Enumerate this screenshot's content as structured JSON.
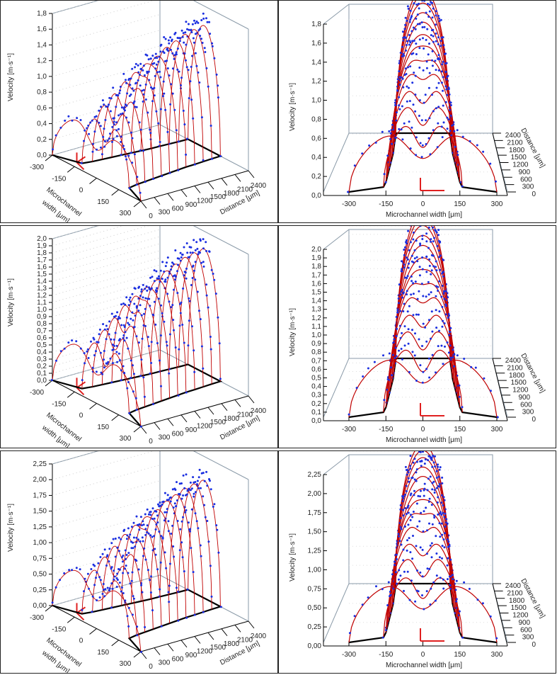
{
  "chart_data": [
    {
      "type": "scatter",
      "view": "oblique",
      "ylabel": "Velocity [m·s⁻¹]",
      "xlabel": [
        "Microchannel",
        "width [μm]"
      ],
      "zlabel": "Distance [μm]",
      "vmax": 1.8,
      "v_ticks": [
        "0,0",
        "0,2",
        "0,4",
        "0,6",
        "0,8",
        "1,0",
        "1,2",
        "1,4",
        "1,6",
        "1,8"
      ],
      "width_ticks": [
        "-300",
        "-150",
        "0",
        "150",
        "300"
      ],
      "distance_ticks": [
        "0",
        "300",
        "600",
        "900",
        "1200",
        "1500",
        "1800",
        "2100",
        "2400"
      ],
      "profiles": {
        "distance": [
          0,
          200,
          400,
          600,
          800,
          1000,
          1200,
          1400,
          1600,
          1800,
          2000,
          2200,
          2400
        ],
        "peak_velocity": [
          0.6,
          0.65,
          0.8,
          0.92,
          1.05,
          1.15,
          1.25,
          1.32,
          1.4,
          1.45,
          1.5,
          1.53,
          1.55
        ],
        "half_width": [
          300,
          160,
          150,
          145,
          140,
          135,
          130,
          125,
          120,
          118,
          115,
          112,
          110
        ],
        "center_dip": [
          0.5,
          0.45,
          0.35,
          0.25,
          0.15,
          0.08,
          0.03,
          0,
          0,
          0,
          0,
          0,
          0
        ]
      },
      "colors": {
        "fit": "#c00000",
        "measured": "#1a2ee0",
        "wall": "#000000"
      }
    },
    {
      "type": "scatter",
      "view": "front",
      "ylabel": "Velocity [m·s⁻¹]",
      "xlabel": "Microchannel width [μm]",
      "zlabel": "Distance [μm]",
      "vmax": 1.8,
      "v_ticks": [
        "0,0",
        "0,2",
        "0,4",
        "0,6",
        "0,8",
        "1,0",
        "1,2",
        "1,4",
        "1,6",
        "1,8"
      ],
      "width_ticks": [
        "-300",
        "-150",
        "0",
        "150",
        "300"
      ],
      "distance_ticks": [
        "0",
        "300",
        "600",
        "900",
        "1200",
        "1500",
        "1800",
        "2100",
        "2400"
      ],
      "profiles": {
        "distance": [
          0,
          200,
          400,
          600,
          800,
          1000,
          1200,
          1400,
          1600,
          1800,
          2000,
          2200,
          2400
        ],
        "peak_velocity": [
          0.6,
          0.65,
          0.8,
          0.92,
          1.05,
          1.15,
          1.25,
          1.32,
          1.4,
          1.45,
          1.5,
          1.53,
          1.55
        ],
        "half_width": [
          300,
          160,
          150,
          145,
          140,
          135,
          130,
          125,
          120,
          118,
          115,
          112,
          110
        ],
        "center_dip": [
          0.5,
          0.45,
          0.35,
          0.25,
          0.15,
          0.08,
          0.03,
          0,
          0,
          0,
          0,
          0,
          0
        ]
      },
      "colors": {
        "fit": "#c00000",
        "measured": "#1a2ee0",
        "wall": "#000000"
      }
    },
    {
      "type": "scatter",
      "view": "oblique",
      "ylabel": "Velocity [m·s⁻¹]",
      "xlabel": [
        "Microchannel",
        "width [μm]"
      ],
      "zlabel": "Distance [μm]",
      "vmax": 2.0,
      "v_ticks": [
        "0,0",
        "0,1",
        "0,2",
        "0,3",
        "0,4",
        "0,5",
        "0,6",
        "0,7",
        "0,8",
        "0,9",
        "1,0",
        "1,1",
        "1,2",
        "1,3",
        "1,4",
        "1,5",
        "1,6",
        "1,7",
        "1,8",
        "1,9",
        "2,0"
      ],
      "width_ticks": [
        "-300",
        "-150",
        "0",
        "150",
        "300"
      ],
      "distance_ticks": [
        "0",
        "300",
        "600",
        "900",
        "1200",
        "1500",
        "1800",
        "2100",
        "2400"
      ],
      "profiles": {
        "distance": [
          0,
          200,
          400,
          600,
          800,
          1000,
          1200,
          1400,
          1600,
          1800,
          2000,
          2200,
          2400
        ],
        "peak_velocity": [
          0.68,
          0.74,
          0.9,
          1.04,
          1.19,
          1.3,
          1.41,
          1.49,
          1.58,
          1.64,
          1.7,
          1.73,
          1.75
        ],
        "half_width": [
          300,
          160,
          150,
          145,
          140,
          135,
          130,
          125,
          120,
          118,
          115,
          112,
          110
        ],
        "center_dip": [
          0.5,
          0.45,
          0.35,
          0.25,
          0.15,
          0.08,
          0.03,
          0,
          0,
          0,
          0,
          0,
          0
        ]
      },
      "colors": {
        "fit": "#c00000",
        "measured": "#1a2ee0",
        "wall": "#000000"
      }
    },
    {
      "type": "scatter",
      "view": "front",
      "ylabel": "Velocity [m·s⁻¹]",
      "xlabel": "Microchannel width [μm]",
      "zlabel": "Distance [μm]",
      "vmax": 2.0,
      "v_ticks": [
        "0,0",
        "0,1",
        "0,2",
        "0,3",
        "0,4",
        "0,5",
        "0,6",
        "0,7",
        "0,8",
        "0,9",
        "1,0",
        "1,1",
        "1,2",
        "1,3",
        "1,4",
        "1,5",
        "1,6",
        "1,7",
        "1,8",
        "1,9",
        "2,0"
      ],
      "width_ticks": [
        "-300",
        "-150",
        "0",
        "150",
        "300"
      ],
      "distance_ticks": [
        "0",
        "300",
        "600",
        "900",
        "1200",
        "1500",
        "1800",
        "2100",
        "2400"
      ],
      "profiles": {
        "distance": [
          0,
          200,
          400,
          600,
          800,
          1000,
          1200,
          1400,
          1600,
          1800,
          2000,
          2200,
          2400
        ],
        "peak_velocity": [
          0.68,
          0.74,
          0.9,
          1.04,
          1.19,
          1.3,
          1.41,
          1.49,
          1.58,
          1.64,
          1.7,
          1.73,
          1.75
        ],
        "half_width": [
          300,
          160,
          150,
          145,
          140,
          135,
          130,
          125,
          120,
          118,
          115,
          112,
          110
        ],
        "center_dip": [
          0.5,
          0.45,
          0.35,
          0.25,
          0.15,
          0.08,
          0.03,
          0,
          0,
          0,
          0,
          0,
          0
        ]
      },
      "colors": {
        "fit": "#c00000",
        "measured": "#1a2ee0",
        "wall": "#000000"
      }
    },
    {
      "type": "scatter",
      "view": "oblique",
      "ylabel": "Velocity [m·s⁻¹]",
      "xlabel": [
        "Microchannel",
        "width [μm]"
      ],
      "zlabel": "Distance [μm]",
      "vmax": 2.25,
      "v_ticks": [
        "0,00",
        "0,25",
        "0,50",
        "0,75",
        "1,00",
        "1,25",
        "1,50",
        "1,75",
        "2,00",
        "2,25"
      ],
      "width_ticks": [
        "-300",
        "-150",
        "0",
        "150",
        "300"
      ],
      "distance_ticks": [
        "0",
        "300",
        "600",
        "900",
        "1200",
        "1500",
        "1800",
        "2100",
        "2400"
      ],
      "profiles": {
        "distance": [
          0,
          200,
          400,
          600,
          800,
          1000,
          1200,
          1400,
          1600,
          1800,
          2000,
          2200,
          2400
        ],
        "peak_velocity": [
          0.75,
          0.8,
          0.98,
          1.12,
          1.28,
          1.4,
          1.52,
          1.6,
          1.7,
          1.76,
          1.82,
          1.85,
          1.87
        ],
        "half_width": [
          300,
          160,
          150,
          145,
          140,
          135,
          130,
          125,
          120,
          118,
          115,
          112,
          110
        ],
        "center_dip": [
          0.5,
          0.45,
          0.35,
          0.25,
          0.15,
          0.08,
          0.03,
          0,
          0,
          0,
          0,
          0,
          0
        ]
      },
      "colors": {
        "fit": "#c00000",
        "measured": "#1a2ee0",
        "wall": "#000000"
      }
    },
    {
      "type": "scatter",
      "view": "front",
      "ylabel": "Velocity [m·s⁻¹]",
      "xlabel": "Microchannel width [μm]",
      "zlabel": "Distance [μm]",
      "vmax": 2.25,
      "v_ticks": [
        "0,00",
        "0,25",
        "0,50",
        "0,75",
        "1,00",
        "1,25",
        "1,50",
        "1,75",
        "2,00",
        "2,25"
      ],
      "width_ticks": [
        "-300",
        "-150",
        "0",
        "150",
        "300"
      ],
      "distance_ticks": [
        "0",
        "300",
        "600",
        "900",
        "1200",
        "1500",
        "1800",
        "2100",
        "2400"
      ],
      "profiles": {
        "distance": [
          0,
          200,
          400,
          600,
          800,
          1000,
          1200,
          1400,
          1600,
          1800,
          2000,
          2200,
          2400
        ],
        "peak_velocity": [
          0.75,
          0.8,
          0.98,
          1.12,
          1.28,
          1.4,
          1.52,
          1.6,
          1.7,
          1.76,
          1.82,
          1.85,
          1.87
        ],
        "half_width": [
          300,
          160,
          150,
          145,
          140,
          135,
          130,
          125,
          120,
          118,
          115,
          112,
          110
        ],
        "center_dip": [
          0.5,
          0.45,
          0.35,
          0.25,
          0.15,
          0.08,
          0.03,
          0,
          0,
          0,
          0,
          0,
          0
        ]
      },
      "colors": {
        "fit": "#c00000",
        "measured": "#1a2ee0",
        "wall": "#000000"
      }
    }
  ]
}
